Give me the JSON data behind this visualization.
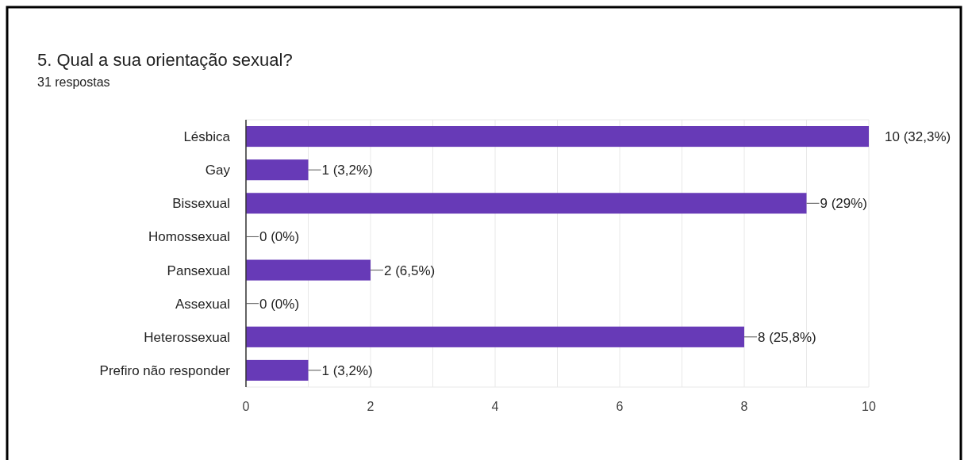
{
  "chart_data": {
    "type": "bar",
    "orientation": "horizontal",
    "title": "5. Qual a sua orientação sexual?",
    "subtitle": "31 respostas",
    "categories": [
      "Lésbica",
      "Gay",
      "Bissexual",
      "Homossexual",
      "Pansexual",
      "Assexual",
      "Heterossexual",
      "Prefiro não responder"
    ],
    "values": [
      10,
      1,
      9,
      0,
      2,
      0,
      8,
      1
    ],
    "value_labels": [
      "10 (32,3%)",
      "1 (3,2%)",
      "9 (29%)",
      "0 (0%)",
      "2 (6,5%)",
      "0 (0%)",
      "8 (25,8%)",
      "1 (3,2%)"
    ],
    "color": "#673ab7",
    "xlim": [
      0,
      10
    ],
    "xticks": [
      0,
      {
        "value": 1,
        "label": null
      },
      2,
      {
        "value": 3,
        "label": null
      },
      4,
      {
        "value": 5,
        "label": null
      },
      6,
      {
        "value": 7,
        "label": null
      },
      8,
      {
        "value": 9,
        "label": null
      },
      10
    ],
    "grid": "x"
  }
}
